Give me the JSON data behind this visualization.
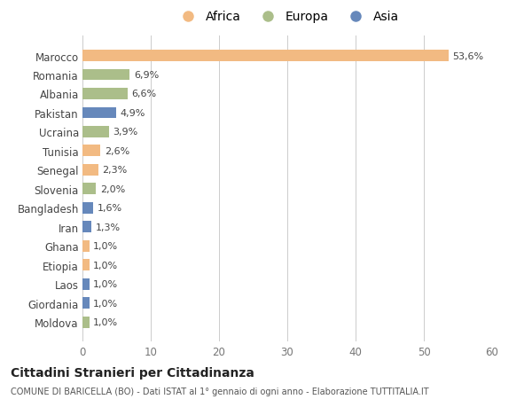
{
  "countries": [
    "Marocco",
    "Romania",
    "Albania",
    "Pakistan",
    "Ucraina",
    "Tunisia",
    "Senegal",
    "Slovenia",
    "Bangladesh",
    "Iran",
    "Ghana",
    "Etiopia",
    "Laos",
    "Giordania",
    "Moldova"
  ],
  "values": [
    53.6,
    6.9,
    6.6,
    4.9,
    3.9,
    2.6,
    2.3,
    2.0,
    1.6,
    1.3,
    1.0,
    1.0,
    1.0,
    1.0,
    1.0
  ],
  "labels": [
    "53,6%",
    "6,9%",
    "6,6%",
    "4,9%",
    "3,9%",
    "2,6%",
    "2,3%",
    "2,0%",
    "1,6%",
    "1,3%",
    "1,0%",
    "1,0%",
    "1,0%",
    "1,0%",
    "1,0%"
  ],
  "continents": [
    "Africa",
    "Europa",
    "Europa",
    "Asia",
    "Europa",
    "Africa",
    "Africa",
    "Europa",
    "Asia",
    "Asia",
    "Africa",
    "Africa",
    "Asia",
    "Asia",
    "Europa"
  ],
  "colors": {
    "Africa": "#F2BA82",
    "Europa": "#ABBE8A",
    "Asia": "#6688BB"
  },
  "xlim": [
    0,
    60
  ],
  "xticks": [
    0,
    10,
    20,
    30,
    40,
    50,
    60
  ],
  "title": "Cittadini Stranieri per Cittadinanza",
  "subtitle": "COMUNE DI BARICELLA (BO) - Dati ISTAT al 1° gennaio di ogni anno - Elaborazione TUTTITALIA.IT",
  "background_color": "#ffffff",
  "grid_color": "#cccccc"
}
